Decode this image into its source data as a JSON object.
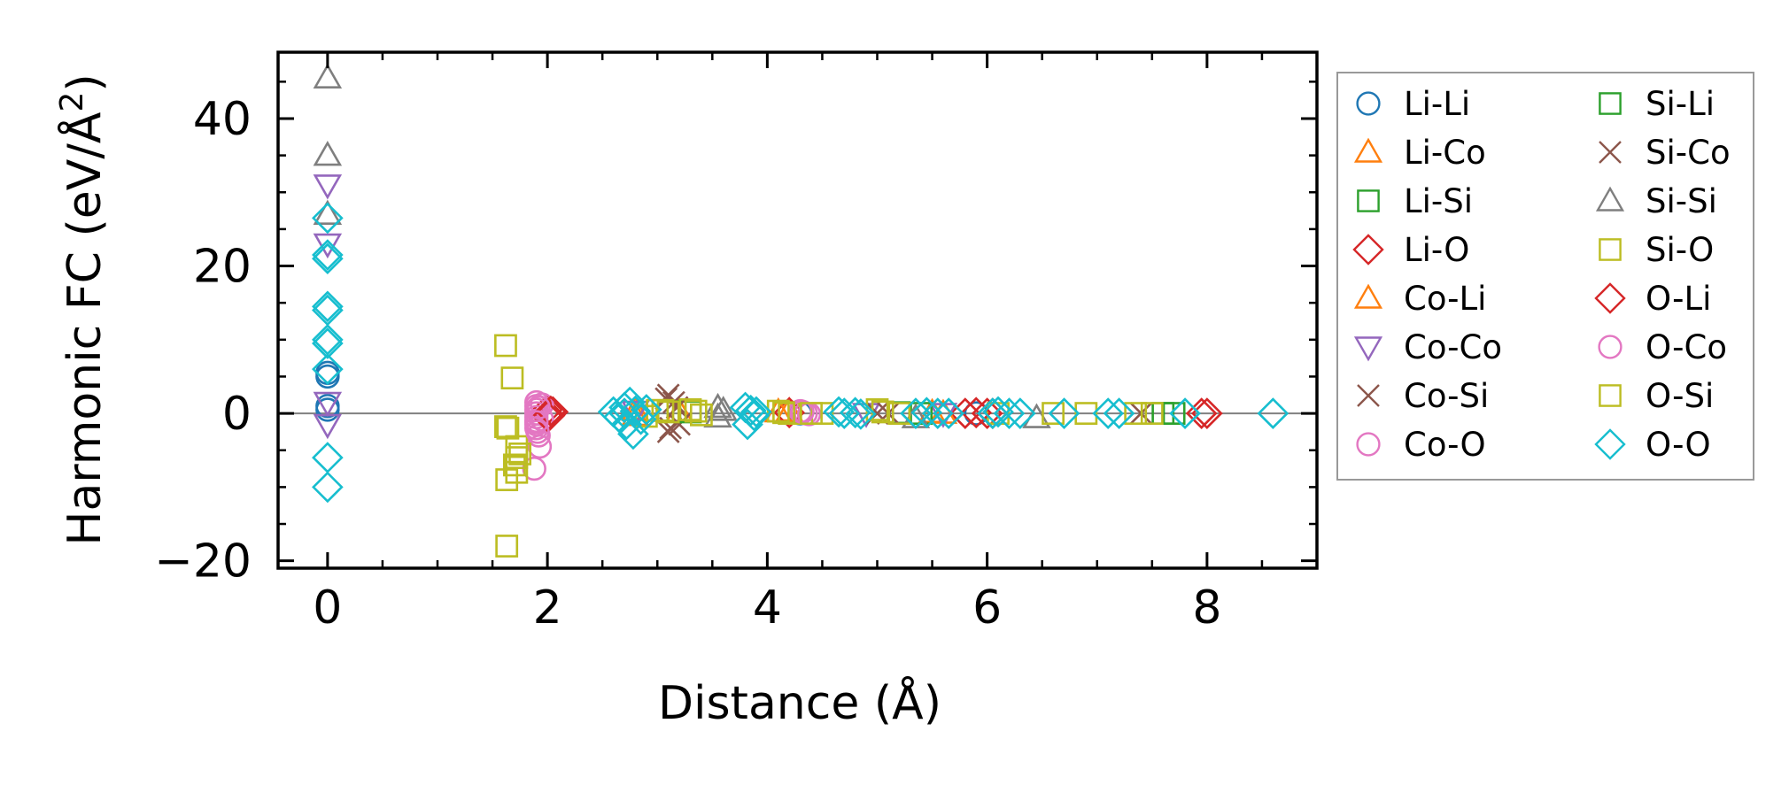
{
  "chart_data": {
    "type": "scatter",
    "xlabel": "Distance (Å)",
    "ylabel_main": "Harmonic FC (eV/Å",
    "ylabel_sup": "2",
    "ylabel_close": ")",
    "xlim": [
      -0.45,
      9.0
    ],
    "ylim": [
      -21,
      49
    ],
    "x_ticks": [
      0,
      2,
      4,
      6,
      8
    ],
    "x_tick_labels": [
      "0",
      "2",
      "4",
      "6",
      "8"
    ],
    "y_ticks": [
      -20,
      0,
      20,
      40
    ],
    "y_tick_labels": [
      "−20",
      "0",
      "20",
      "40"
    ],
    "zero_line": true,
    "legend_position": "outside-right",
    "series": [
      {
        "name": "Li-Li",
        "marker": "circle",
        "color": "#1f77b4",
        "points": [
          [
            0,
            5
          ],
          [
            0,
            5.5
          ],
          [
            0,
            1
          ],
          [
            0,
            0.5
          ],
          [
            4.3,
            0
          ],
          [
            5.9,
            0
          ]
        ]
      },
      {
        "name": "Li-Co",
        "marker": "triangle-up",
        "color": "#ff7f0e",
        "points": [
          [
            2.8,
            0.4
          ],
          [
            3.2,
            0.2
          ],
          [
            4.2,
            0.3
          ],
          [
            5.5,
            0.1
          ]
        ]
      },
      {
        "name": "Li-Si",
        "marker": "square",
        "color": "#2ca02c",
        "points": [
          [
            3.1,
            0.3
          ],
          [
            5.2,
            0.1
          ],
          [
            7.6,
            0
          ]
        ]
      },
      {
        "name": "Li-O",
        "marker": "diamond",
        "color": "#d62728",
        "points": [
          [
            2.0,
            0.5
          ],
          [
            2.02,
            -0.3
          ],
          [
            2.05,
            0.2
          ],
          [
            4.2,
            0.1
          ],
          [
            5.8,
            0
          ],
          [
            6.0,
            0
          ],
          [
            8.0,
            0
          ]
        ]
      },
      {
        "name": "Co-Li",
        "marker": "triangle-up",
        "color": "#ff7f0e",
        "points": [
          [
            2.8,
            -0.3
          ],
          [
            4.1,
            0.2
          ],
          [
            5.6,
            0
          ]
        ]
      },
      {
        "name": "Co-Co",
        "marker": "triangle-down",
        "color": "#9467bd",
        "points": [
          [
            0,
            31
          ],
          [
            0,
            23
          ],
          [
            0,
            1.5
          ],
          [
            0,
            -1.5
          ],
          [
            2.8,
            0.3
          ],
          [
            4.9,
            0
          ],
          [
            5.6,
            0
          ]
        ]
      },
      {
        "name": "Co-Si",
        "marker": "x",
        "color": "#8c564b",
        "points": [
          [
            3.1,
            2.5
          ],
          [
            3.1,
            -2.5
          ],
          [
            3.15,
            1.5
          ],
          [
            3.2,
            -1.5
          ],
          [
            5.1,
            0
          ],
          [
            7.4,
            0
          ]
        ]
      },
      {
        "name": "Co-O",
        "marker": "circle",
        "color": "#e377c2",
        "points": [
          [
            1.9,
            1.5
          ],
          [
            1.9,
            1
          ],
          [
            1.9,
            0.5
          ],
          [
            1.9,
            0
          ],
          [
            1.9,
            -0.5
          ],
          [
            1.9,
            -1
          ],
          [
            1.9,
            -1.5
          ],
          [
            1.9,
            -2
          ],
          [
            1.92,
            -3
          ],
          [
            1.93,
            -4.5
          ],
          [
            1.88,
            -7.5
          ],
          [
            1.95,
            1.2
          ],
          [
            1.95,
            -0.8
          ],
          [
            4.3,
            0.3
          ],
          [
            4.35,
            0
          ]
        ]
      },
      {
        "name": "Si-Li",
        "marker": "square",
        "color": "#2ca02c",
        "points": [
          [
            3.3,
            0.2
          ],
          [
            5.4,
            0
          ],
          [
            7.7,
            0
          ]
        ]
      },
      {
        "name": "Si-Co",
        "marker": "x",
        "color": "#8c564b",
        "points": [
          [
            3.08,
            2
          ],
          [
            3.12,
            -2
          ],
          [
            3.18,
            0.8
          ],
          [
            5.0,
            0
          ]
        ]
      },
      {
        "name": "Si-Si",
        "marker": "triangle-up",
        "color": "#7f7f7f",
        "points": [
          [
            0,
            45.5
          ],
          [
            0,
            35
          ],
          [
            0,
            27
          ],
          [
            3.55,
            0.8
          ],
          [
            3.55,
            -0.5
          ],
          [
            3.6,
            0.4
          ],
          [
            5.35,
            -0.6
          ],
          [
            6.45,
            -0.6
          ]
        ]
      },
      {
        "name": "Si-O",
        "marker": "square",
        "color": "#bcbd22",
        "points": [
          [
            1.62,
            9.2
          ],
          [
            1.68,
            4.8
          ],
          [
            1.62,
            -1.8
          ],
          [
            1.72,
            -4.5
          ],
          [
            1.72,
            -6
          ],
          [
            1.72,
            -8
          ],
          [
            1.63,
            -9
          ],
          [
            1.63,
            -18
          ],
          [
            3.0,
            0.4
          ],
          [
            3.1,
            0.2
          ],
          [
            3.3,
            0.5
          ],
          [
            3.4,
            -0.2
          ],
          [
            4.1,
            0.3
          ],
          [
            4.2,
            0
          ],
          [
            4.5,
            0
          ],
          [
            5.0,
            0.5
          ],
          [
            5.2,
            0
          ],
          [
            6.1,
            0
          ],
          [
            6.9,
            0
          ],
          [
            7.5,
            0
          ]
        ]
      },
      {
        "name": "O-Li",
        "marker": "diamond",
        "color": "#d62728",
        "points": [
          [
            2.0,
            -0.4
          ],
          [
            2.03,
            0.3
          ],
          [
            5.9,
            0.1
          ],
          [
            6.05,
            0
          ],
          [
            7.95,
            0
          ]
        ]
      },
      {
        "name": "O-Co",
        "marker": "circle",
        "color": "#e377c2",
        "points": [
          [
            1.92,
            0.8
          ],
          [
            1.9,
            -1.2
          ],
          [
            1.91,
            -2.5
          ],
          [
            4.32,
            0.2
          ],
          [
            4.38,
            -0.1
          ]
        ]
      },
      {
        "name": "O-Si",
        "marker": "square",
        "color": "#bcbd22",
        "points": [
          [
            1.64,
            -2
          ],
          [
            1.7,
            -7
          ],
          [
            1.75,
            -5.5
          ],
          [
            2.9,
            -0.4
          ],
          [
            3.05,
            0.4
          ],
          [
            3.35,
            0.3
          ],
          [
            4.15,
            0.1
          ],
          [
            4.4,
            0
          ],
          [
            5.05,
            0.2
          ],
          [
            6.6,
            0
          ],
          [
            7.35,
            0
          ]
        ]
      },
      {
        "name": "O-O",
        "marker": "diamond",
        "color": "#17becf",
        "points": [
          [
            0,
            26.5
          ],
          [
            0,
            21.5
          ],
          [
            0,
            21
          ],
          [
            0,
            14.5
          ],
          [
            0,
            14
          ],
          [
            0,
            10
          ],
          [
            0,
            9.5
          ],
          [
            0,
            6
          ],
          [
            0,
            -6
          ],
          [
            0,
            -10
          ],
          [
            2.6,
            0.2
          ],
          [
            2.65,
            -0.5
          ],
          [
            2.7,
            0.8
          ],
          [
            2.72,
            -1.5
          ],
          [
            2.75,
            1.5
          ],
          [
            2.78,
            -2.8
          ],
          [
            2.8,
            0.3
          ],
          [
            2.85,
            -0.8
          ],
          [
            2.9,
            0.5
          ],
          [
            2.7,
            0
          ],
          [
            3.8,
            0.8
          ],
          [
            3.82,
            -1.5
          ],
          [
            3.85,
            0.4
          ],
          [
            3.88,
            -0.3
          ],
          [
            3.9,
            0.2
          ],
          [
            4.65,
            0.2
          ],
          [
            4.7,
            0
          ],
          [
            4.8,
            0.1
          ],
          [
            4.85,
            -0.1
          ],
          [
            5.35,
            0
          ],
          [
            5.45,
            0.1
          ],
          [
            5.55,
            0
          ],
          [
            5.65,
            0
          ],
          [
            6.05,
            0
          ],
          [
            6.1,
            0.2
          ],
          [
            6.2,
            0
          ],
          [
            6.3,
            0
          ],
          [
            6.7,
            0
          ],
          [
            7.1,
            0
          ],
          [
            7.2,
            0
          ],
          [
            7.8,
            0
          ],
          [
            8.6,
            0
          ]
        ]
      }
    ],
    "legend_columns": [
      [
        "Li-Li",
        "Li-Co",
        "Li-Si",
        "Li-O",
        "Co-Li",
        "Co-Co",
        "Co-Si",
        "Co-O"
      ],
      [
        "Si-Li",
        "Si-Co",
        "Si-Si",
        "Si-O",
        "O-Li",
        "O-Co",
        "O-Si",
        "O-O"
      ]
    ]
  }
}
